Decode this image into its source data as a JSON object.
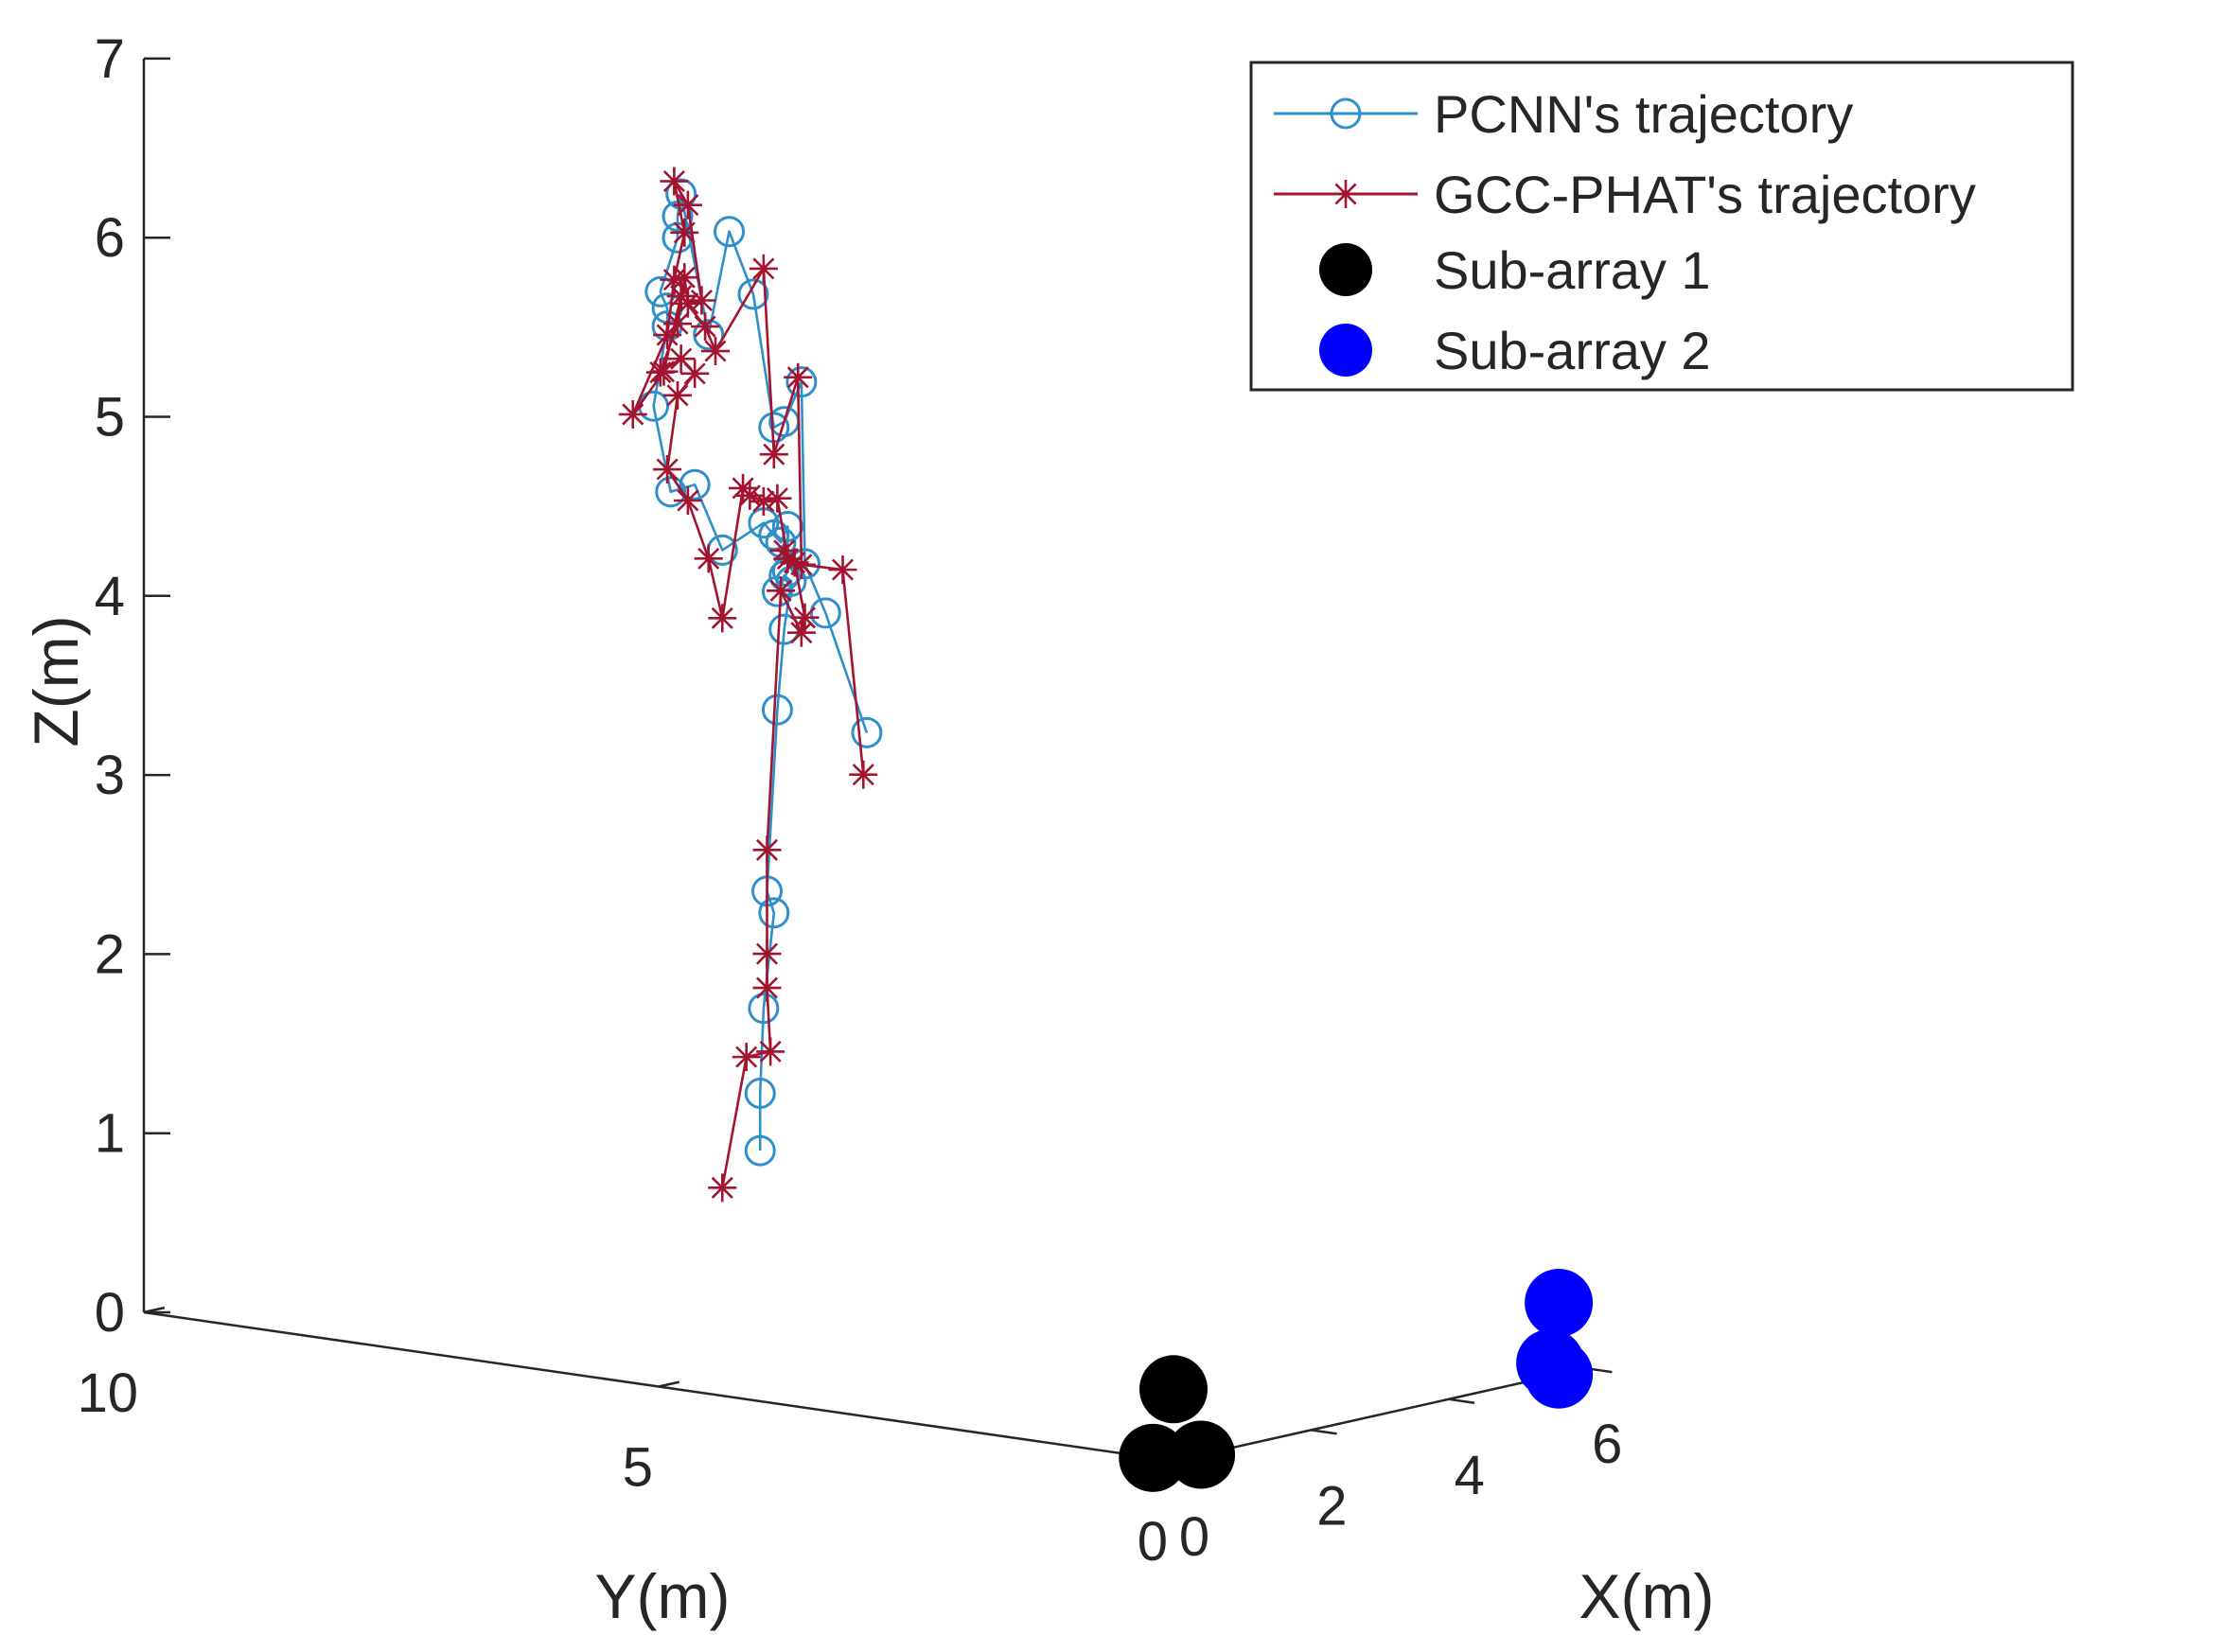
{
  "chart_data": {
    "type": "scatter",
    "projection": "3d",
    "axes": {
      "x": {
        "label": "X(m)",
        "range": [
          0,
          6
        ],
        "ticks": [
          0,
          2,
          4,
          6
        ]
      },
      "y": {
        "label": "Y(m)",
        "range": [
          0,
          10
        ],
        "ticks": [
          0,
          5,
          10
        ]
      },
      "z": {
        "label": "Z(m)",
        "range": [
          0,
          7
        ],
        "ticks": [
          0,
          1,
          2,
          3,
          4,
          5,
          6,
          7
        ]
      }
    },
    "grid": false,
    "legend_position": "top-right",
    "series": [
      {
        "name": "PCNN's trajectory",
        "color": "#2f8fca",
        "marker": "circle-open",
        "line": true,
        "points": [
          [
            1.55,
            5.05,
            1.18
          ],
          [
            1.55,
            5.05,
            1.5
          ],
          [
            1.6,
            5.05,
            1.97
          ],
          [
            1.75,
            5.05,
            2.49
          ],
          [
            1.65,
            5.05,
            2.62
          ],
          [
            1.8,
            5.05,
            3.62
          ],
          [
            1.9,
            5.05,
            4.06
          ],
          [
            2.0,
            5.05,
            4.32
          ],
          [
            1.9,
            5.05,
            4.36
          ],
          [
            1.8,
            5.05,
            4.28
          ],
          [
            1.95,
            5.05,
            4.38
          ],
          [
            1.95,
            5.05,
            4.63
          ],
          [
            1.85,
            5.05,
            4.55
          ],
          [
            1.75,
            5.05,
            4.6
          ],
          [
            1.6,
            5.05,
            4.68
          ],
          [
            1.0,
            5.05,
            4.58
          ],
          [
            0.6,
            5.05,
            4.98
          ],
          [
            0.25,
            5.05,
            4.97
          ],
          [
            0.0,
            5.05,
            5.47
          ],
          [
            0.2,
            5.05,
            5.9
          ],
          [
            0.2,
            5.05,
            6.0
          ],
          [
            0.1,
            5.05,
            6.1
          ],
          [
            0.35,
            5.05,
            6.38
          ],
          [
            0.35,
            5.05,
            6.5
          ],
          [
            0.4,
            5.05,
            6.62
          ],
          [
            0.8,
            5.05,
            5.8
          ],
          [
            1.1,
            5.05,
            6.35
          ],
          [
            1.45,
            5.05,
            5.97
          ],
          [
            1.75,
            5.05,
            5.2
          ],
          [
            1.9,
            5.05,
            5.22
          ],
          [
            2.15,
            5.05,
            5.42
          ],
          [
            2.2,
            5.05,
            4.4
          ],
          [
            2.5,
            5.05,
            4.1
          ],
          [
            3.1,
            5.05,
            3.38
          ]
        ]
      },
      {
        "name": "GCC-PHAT's trajectory",
        "color": "#a2142f",
        "marker": "asterisk",
        "line": true,
        "points": [
          [
            1.0,
            5.05,
            1.02
          ],
          [
            1.35,
            5.05,
            1.72
          ],
          [
            1.7,
            5.05,
            1.72
          ],
          [
            1.65,
            5.05,
            2.08
          ],
          [
            1.65,
            5.05,
            2.27
          ],
          [
            1.65,
            5.05,
            2.85
          ],
          [
            1.85,
            5.05,
            4.28
          ],
          [
            2.15,
            5.05,
            4.02
          ],
          [
            2.2,
            5.05,
            4.1
          ],
          [
            2.05,
            5.05,
            4.42
          ],
          [
            1.9,
            5.05,
            4.5
          ],
          [
            1.95,
            5.05,
            4.45
          ],
          [
            1.8,
            5.05,
            4.8
          ],
          [
            1.6,
            5.05,
            4.8
          ],
          [
            1.4,
            5.05,
            4.85
          ],
          [
            1.3,
            5.05,
            4.9
          ],
          [
            1.0,
            5.05,
            4.2
          ],
          [
            0.8,
            5.05,
            4.55
          ],
          [
            0.5,
            5.05,
            4.9
          ],
          [
            0.2,
            5.05,
            5.1
          ],
          [
            0.35,
            5.05,
            5.5
          ],
          [
            0.6,
            5.05,
            5.6
          ],
          [
            0.4,
            5.05,
            5.7
          ],
          [
            0.1,
            5.05,
            5.65
          ],
          [
            0.35,
            5.05,
            5.9
          ],
          [
            0.45,
            5.05,
            6.15
          ],
          [
            0.5,
            5.05,
            6.0
          ],
          [
            0.7,
            5.05,
            6.0
          ],
          [
            0.5,
            5.05,
            6.55
          ],
          [
            0.3,
            5.05,
            6.7
          ],
          [
            0.45,
            5.05,
            6.4
          ],
          [
            0.3,
            5.05,
            6.15
          ],
          [
            0.2,
            5.05,
            5.85
          ],
          [
            -0.3,
            5.05,
            5.45
          ],
          [
            0.15,
            5.05,
            5.65
          ],
          [
            0.4,
            5.05,
            6.05
          ],
          [
            0.75,
            5.05,
            5.85
          ],
          [
            0.9,
            5.05,
            5.7
          ],
          [
            1.6,
            5.05,
            6.1
          ],
          [
            1.75,
            5.05,
            5.05
          ],
          [
            2.1,
            5.05,
            5.45
          ],
          [
            2.15,
            5.05,
            4.4
          ],
          [
            2.75,
            5.05,
            4.32
          ],
          [
            3.05,
            5.05,
            3.15
          ]
        ]
      },
      {
        "name": "Sub-array 1",
        "color": "#000000",
        "marker": "filled-circle",
        "line": false,
        "points": [
          [
            0,
            0.2,
            0
          ],
          [
            0.4,
            0,
            0
          ],
          [
            0,
            0,
            0.4
          ]
        ]
      },
      {
        "name": "Sub-array 2",
        "color": "#0000ff",
        "marker": "filled-circle",
        "line": false,
        "points": [
          [
            5.6,
            0,
            0
          ],
          [
            6.0,
            0.35,
            0
          ],
          [
            5.6,
            0,
            0.4
          ]
        ]
      }
    ]
  }
}
